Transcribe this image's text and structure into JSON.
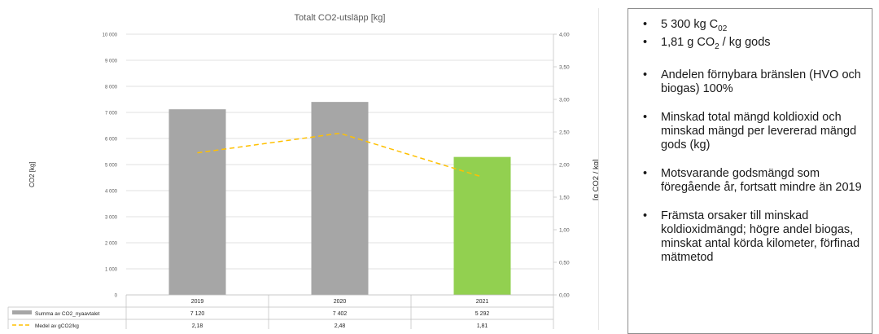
{
  "chart_data": {
    "type": "bar",
    "title": "Totalt CO2-utsläpp [kg]",
    "categories": [
      "2019",
      "2020",
      "2021"
    ],
    "series": [
      {
        "name": "Summa av CO2_nyaavtalet",
        "type": "bar",
        "axis": "left",
        "values": [
          7120,
          7402,
          5292
        ],
        "labels": [
          "7 120",
          "7 402",
          "5 292"
        ],
        "colors": [
          "#a6a6a6",
          "#a6a6a6",
          "#92d050"
        ]
      },
      {
        "name": "Medel av gCO2/kg",
        "type": "line",
        "axis": "right",
        "style": "dashed",
        "values": [
          2.18,
          2.48,
          1.81
        ],
        "labels": [
          "2,18",
          "2,48",
          "1,81"
        ],
        "color": "#ffc000"
      }
    ],
    "left_axis": {
      "label": "CO2 [kg]",
      "range": [
        0,
        10000
      ],
      "ticks": [
        "0",
        "1 000",
        "2 000",
        "3 000",
        "4 000",
        "5 000",
        "6 000",
        "7 000",
        "8 000",
        "9 000",
        "10 000"
      ]
    },
    "right_axis": {
      "label": "[g CO2 / kg]",
      "range": [
        0,
        4.0
      ],
      "ticks": [
        "0,00",
        "0,50",
        "1,00",
        "1,50",
        "2,00",
        "2,50",
        "3,00",
        "3,50",
        "4,00"
      ]
    },
    "grid": true,
    "legend": "data-table-below"
  },
  "colors": {
    "bar_default": "#a6a6a6",
    "bar_highlight": "#92d050",
    "line": "#ffc000",
    "grid": "#d9d9d9"
  },
  "notes": [
    {
      "text": "5 300 kg C",
      "sub": "0",
      "after": "2"
    },
    {
      "text": "1,81 g CO",
      "sub": "2",
      "after": " / kg gods"
    },
    {
      "text": "Andelen förnybara bränslen (HVO och biogas) 100%"
    },
    {
      "text": "Minskad total mängd koldioxid och minskad mängd per levererad mängd gods (kg)"
    },
    {
      "text": "Motsvarande godsmängd som föregående år, fortsatt mindre än 2019"
    },
    {
      "text": "Främsta orsaker till minskad koldioxidmängd; högre andel biogas, minskat antal körda kilometer, förfinad mätmetod"
    }
  ]
}
